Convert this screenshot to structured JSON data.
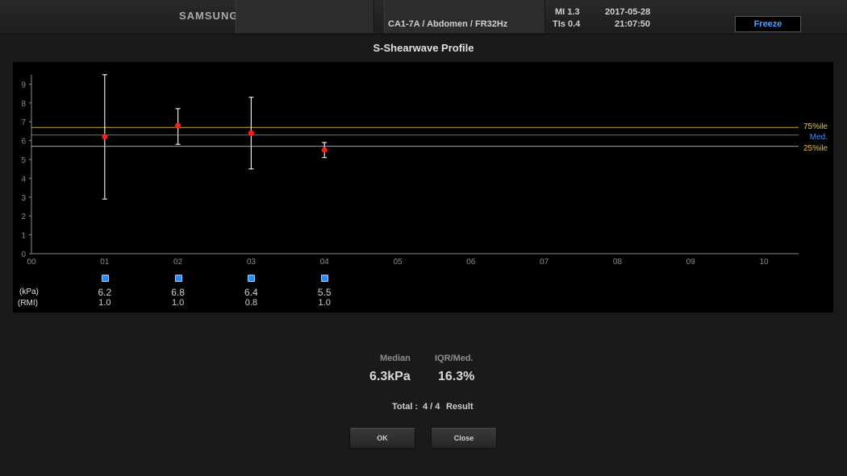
{
  "header": {
    "brand": "SAMSUNG",
    "probe_info": "CA1-7A / Abdomen / FR32Hz",
    "mi": "MI  1.3",
    "tis": "TIs  0.4",
    "date": "2017-05-28",
    "time": "21:07:50",
    "freeze_label": "Freeze"
  },
  "title": "S-Shearwave Profile",
  "chart_data": {
    "type": "scatter",
    "x_categories": [
      "00",
      "01",
      "02",
      "03",
      "04",
      "05",
      "06",
      "07",
      "08",
      "09",
      "10"
    ],
    "y_ticks": [
      "0",
      "1",
      "2",
      "3",
      "4",
      "5",
      "6",
      "7",
      "8",
      "9"
    ],
    "ylim": [
      0,
      9.5
    ],
    "points": [
      {
        "x": 1,
        "y": 6.2,
        "low": 2.9,
        "high": 9.5
      },
      {
        "x": 2,
        "y": 6.8,
        "low": 5.8,
        "high": 7.7
      },
      {
        "x": 3,
        "y": 6.4,
        "low": 4.5,
        "high": 8.3
      },
      {
        "x": 4,
        "y": 5.5,
        "low": 5.1,
        "high": 5.9
      }
    ],
    "reference_lines": [
      {
        "label": "75%ile",
        "value": 6.7,
        "color": "#e8c04a"
      },
      {
        "label": "Med.",
        "value": 6.3,
        "color": "#4a90ff"
      },
      {
        "label": "25%ile",
        "value": 5.7,
        "color": "#e8c04a"
      }
    ],
    "point_color": "#ff1a1a"
  },
  "rows": {
    "kpa_label": "(kPa)",
    "rmi_label": "(RMI)",
    "kpa_values": [
      "6.2",
      "6.8",
      "6.4",
      "5.5"
    ],
    "rmi_values": [
      "1.0",
      "1.0",
      "0.8",
      "1.0"
    ]
  },
  "stats": {
    "median_label": "Median",
    "median_value": "6.3kPa",
    "iqr_label": "IQR/Med.",
    "iqr_value": "16.3%",
    "total_label": "Total :",
    "total_value": "4 / 4",
    "result_label": "Result"
  },
  "buttons": {
    "ok": "OK",
    "close": "Close"
  }
}
